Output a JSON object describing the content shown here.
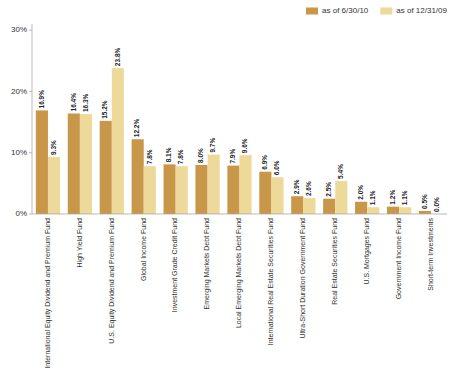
{
  "chart_data": {
    "type": "bar",
    "categories": [
      "International Equity Dividend and Premium Fund",
      "High Yield Fund",
      "U.S. Equity Dividend and Premium Fund",
      "Global Income Fund",
      "Investment Grade Credit Fund",
      "Emerging Markets Debt Fund",
      "Local Emerging Markets Debt Fund",
      "International Real Estate Securities Fund",
      "Ultra-Short Duration Government Fund",
      "Real Estate Securities Fund",
      "U.S. Mortgages Fund",
      "Government Income Fund",
      "Short-term Investments"
    ],
    "series": [
      {
        "name": "as of 6/30/10",
        "color": "#C8974A",
        "values": [
          16.9,
          16.4,
          15.2,
          12.2,
          8.1,
          8.0,
          7.9,
          6.9,
          2.9,
          2.5,
          2.0,
          1.2,
          0.5
        ],
        "value_labels": [
          "16.9%",
          "16.4%",
          "15.2%",
          "12.2%",
          "8.1%",
          "8.0%",
          "7.9%",
          "6.9%",
          "2.9%",
          "2.5%",
          "2.0%",
          "1.2%",
          "0.5%"
        ]
      },
      {
        "name": "as of 12/31/09",
        "color": "#EDD99A",
        "values": [
          9.3,
          16.3,
          23.8,
          7.8,
          7.8,
          9.7,
          9.6,
          6.0,
          2.6,
          5.4,
          1.1,
          1.1,
          0.0
        ],
        "value_labels": [
          "9.3%",
          "16.3%",
          "23.8%",
          "7.8%",
          "7.8%",
          "9.7%",
          "9.6%",
          "6.0%",
          "2.6%",
          "5.4%",
          "1.1%",
          "1.1%",
          "0.0%"
        ]
      }
    ],
    "ylim": [
      0,
      31
    ],
    "yticks": [
      {
        "value": 0,
        "label": "0%"
      },
      {
        "value": 10,
        "label": "10%"
      },
      {
        "value": 20,
        "label": "20%"
      },
      {
        "value": 30,
        "label": "30%"
      }
    ],
    "data_labels": true,
    "grid": false,
    "legend": "upper-right"
  }
}
